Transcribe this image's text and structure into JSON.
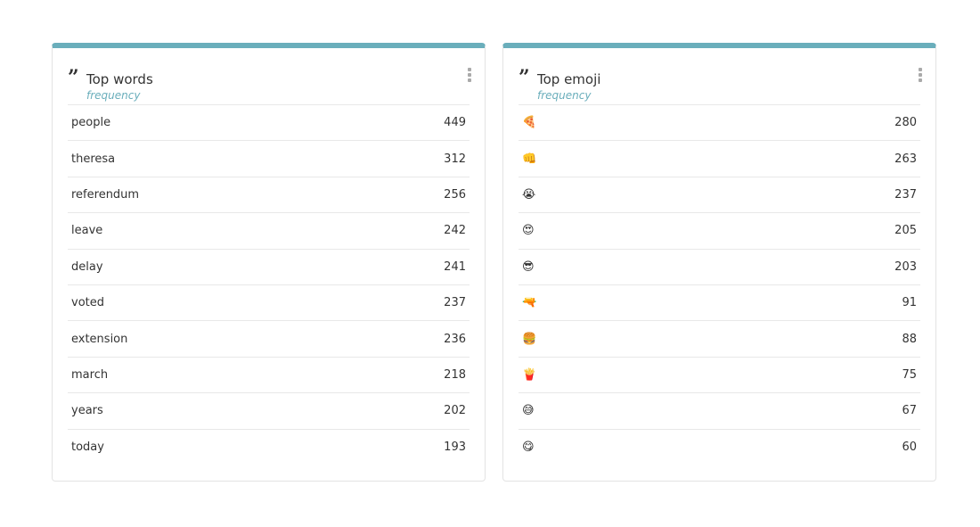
{
  "panels": [
    {
      "title": "Top words",
      "subtitle": "frequency",
      "rows": [
        [
          "people",
          "449"
        ],
        [
          "theresa",
          "312"
        ],
        [
          "referendum",
          "256"
        ],
        [
          "leave",
          "242"
        ],
        [
          "delay",
          "241"
        ],
        [
          "voted",
          "237"
        ],
        [
          "extension",
          "236"
        ],
        [
          "march",
          "218"
        ],
        [
          "years",
          "202"
        ],
        [
          "today",
          "193"
        ]
      ]
    },
    {
      "title": "Top emoji",
      "subtitle": "frequency",
      "rows": [
        [
          "🍕",
          "280"
        ],
        [
          "👊",
          "263"
        ],
        [
          "😭",
          "237"
        ],
        [
          "😍",
          "205"
        ],
        [
          "😎",
          "203"
        ],
        [
          "🔫",
          "91"
        ],
        [
          "🍔",
          "88"
        ],
        [
          "🍟",
          "75"
        ],
        [
          "😅",
          "67"
        ],
        [
          "😋",
          "60"
        ]
      ]
    }
  ]
}
